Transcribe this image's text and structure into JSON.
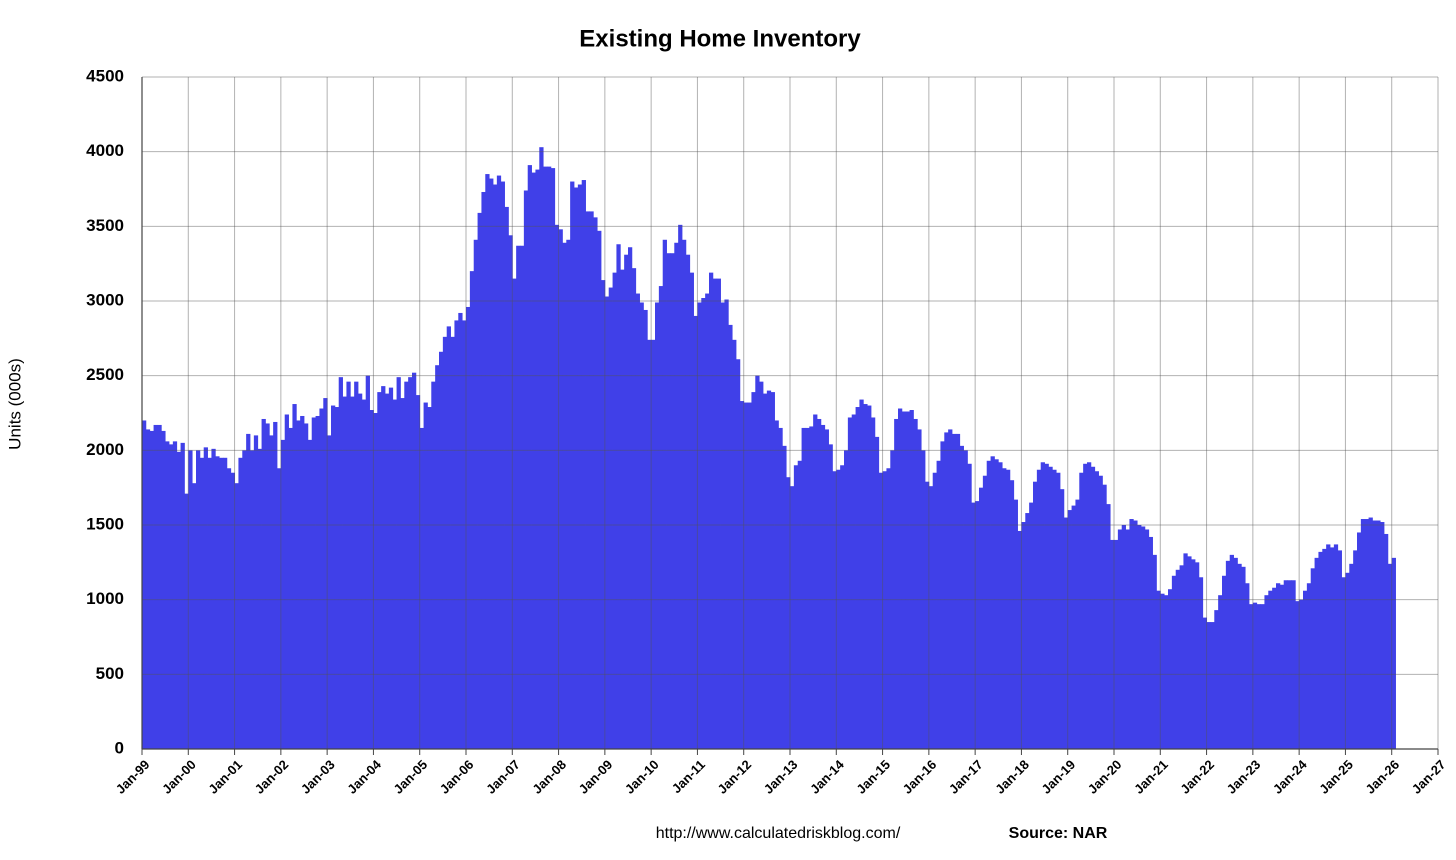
{
  "chart_data": {
    "type": "bar",
    "title": "Existing Home Inventory",
    "ylabel": "Units (000s)",
    "footer_url": "http://www.calculatedriskblog.com/",
    "source": "Source: NAR",
    "color": "#4040e8",
    "grid": true,
    "x": [
      "1999-01",
      "1999-02",
      "1999-03",
      "1999-04",
      "1999-05",
      "1999-06",
      "1999-07",
      "1999-08",
      "1999-09",
      "1999-10",
      "1999-11",
      "1999-12",
      "2000-01",
      "2000-02",
      "2000-03",
      "2000-04",
      "2000-05",
      "2000-06",
      "2000-07",
      "2000-08",
      "2000-09",
      "2000-10",
      "2000-11",
      "2000-12",
      "2001-01",
      "2001-02",
      "2001-03",
      "2001-04",
      "2001-05",
      "2001-06",
      "2001-07",
      "2001-08",
      "2001-09",
      "2001-10",
      "2001-11",
      "2001-12",
      "2002-01",
      "2002-02",
      "2002-03",
      "2002-04",
      "2002-05",
      "2002-06",
      "2002-07",
      "2002-08",
      "2002-09",
      "2002-10",
      "2002-11",
      "2002-12",
      "2003-01",
      "2003-02",
      "2003-03",
      "2003-04",
      "2003-05",
      "2003-06",
      "2003-07",
      "2003-08",
      "2003-09",
      "2003-10",
      "2003-11",
      "2003-12",
      "2004-01",
      "2004-02",
      "2004-03",
      "2004-04",
      "2004-05",
      "2004-06",
      "2004-07",
      "2004-08",
      "2004-09",
      "2004-10",
      "2004-11",
      "2004-12",
      "2005-01",
      "2005-02",
      "2005-03",
      "2005-04",
      "2005-05",
      "2005-06",
      "2005-07",
      "2005-08",
      "2005-09",
      "2005-10",
      "2005-11",
      "2005-12",
      "2006-01",
      "2006-02",
      "2006-03",
      "2006-04",
      "2006-05",
      "2006-06",
      "2006-07",
      "2006-08",
      "2006-09",
      "2006-10",
      "2006-11",
      "2006-12",
      "2007-01",
      "2007-02",
      "2007-03",
      "2007-04",
      "2007-05",
      "2007-06",
      "2007-07",
      "2007-08",
      "2007-09",
      "2007-10",
      "2007-11",
      "2007-12",
      "2008-01",
      "2008-02",
      "2008-03",
      "2008-04",
      "2008-05",
      "2008-06",
      "2008-07",
      "2008-08",
      "2008-09",
      "2008-10",
      "2008-11",
      "2008-12",
      "2009-01",
      "2009-02",
      "2009-03",
      "2009-04",
      "2009-05",
      "2009-06",
      "2009-07",
      "2009-08",
      "2009-09",
      "2009-10",
      "2009-11",
      "2009-12",
      "2010-01",
      "2010-02",
      "2010-03",
      "2010-04",
      "2010-05",
      "2010-06",
      "2010-07",
      "2010-08",
      "2010-09",
      "2010-10",
      "2010-11",
      "2010-12",
      "2011-01",
      "2011-02",
      "2011-03",
      "2011-04",
      "2011-05",
      "2011-06",
      "2011-07",
      "2011-08",
      "2011-09",
      "2011-10",
      "2011-11",
      "2011-12",
      "2012-01",
      "2012-02",
      "2012-03",
      "2012-04",
      "2012-05",
      "2012-06",
      "2012-07",
      "2012-08",
      "2012-09",
      "2012-10",
      "2012-11",
      "2012-12",
      "2013-01",
      "2013-02",
      "2013-03",
      "2013-04",
      "2013-05",
      "2013-06",
      "2013-07",
      "2013-08",
      "2013-09",
      "2013-10",
      "2013-11",
      "2013-12",
      "2014-01",
      "2014-02",
      "2014-03",
      "2014-04",
      "2014-05",
      "2014-06",
      "2014-07",
      "2014-08",
      "2014-09",
      "2014-10",
      "2014-11",
      "2014-12",
      "2015-01",
      "2015-02",
      "2015-03",
      "2015-04",
      "2015-05",
      "2015-06",
      "2015-07",
      "2015-08",
      "2015-09",
      "2015-10",
      "2015-11",
      "2015-12",
      "2016-01",
      "2016-02",
      "2016-03",
      "2016-04",
      "2016-05",
      "2016-06",
      "2016-07",
      "2016-08",
      "2016-09",
      "2016-10",
      "2016-11",
      "2016-12",
      "2017-01",
      "2017-02",
      "2017-03",
      "2017-04",
      "2017-05",
      "2017-06",
      "2017-07",
      "2017-08",
      "2017-09",
      "2017-10",
      "2017-11",
      "2017-12",
      "2018-01",
      "2018-02",
      "2018-03",
      "2018-04",
      "2018-05",
      "2018-06",
      "2018-07",
      "2018-08",
      "2018-09",
      "2018-10",
      "2018-11",
      "2018-12",
      "2019-01",
      "2019-02",
      "2019-03",
      "2019-04",
      "2019-05",
      "2019-06",
      "2019-07",
      "2019-08",
      "2019-09",
      "2019-10",
      "2019-11",
      "2019-12",
      "2020-01",
      "2020-02",
      "2020-03",
      "2020-04",
      "2020-05",
      "2020-06",
      "2020-07",
      "2020-08",
      "2020-09",
      "2020-10",
      "2020-11",
      "2020-12",
      "2021-01",
      "2021-02",
      "2021-03",
      "2021-04",
      "2021-05",
      "2021-06",
      "2021-07",
      "2021-08",
      "2021-09",
      "2021-10",
      "2021-11",
      "2021-12",
      "2022-01",
      "2022-02",
      "2022-03",
      "2022-04",
      "2022-05",
      "2022-06",
      "2022-07",
      "2022-08",
      "2022-09",
      "2022-10",
      "2022-11",
      "2022-12",
      "2023-01",
      "2023-02",
      "2023-03",
      "2023-04",
      "2023-05",
      "2023-06",
      "2023-07",
      "2023-08",
      "2023-09",
      "2023-10",
      "2023-11",
      "2023-12",
      "2024-01",
      "2024-02",
      "2024-03",
      "2024-04",
      "2024-05",
      "2024-06",
      "2024-07",
      "2024-08",
      "2024-09",
      "2024-10",
      "2024-11",
      "2024-12",
      "2025-01",
      "2025-02",
      "2025-03",
      "2025-04",
      "2025-05",
      "2025-06",
      "2025-07",
      "2025-08",
      "2025-09",
      "2025-10",
      "2025-11",
      "2025-12",
      "2026-01"
    ],
    "values": [
      2200,
      2140,
      2130,
      2170,
      2170,
      2130,
      2060,
      2040,
      2060,
      1990,
      2050,
      1710,
      2000,
      1780,
      2000,
      1950,
      2020,
      1950,
      2010,
      1960,
      1950,
      1950,
      1880,
      1850,
      1780,
      1950,
      2000,
      2110,
      2000,
      2100,
      2010,
      2210,
      2180,
      2100,
      2190,
      1880,
      2070,
      2240,
      2150,
      2310,
      2200,
      2230,
      2180,
      2070,
      2220,
      2230,
      2280,
      2350,
      2100,
      2300,
      2290,
      2490,
      2360,
      2460,
      2360,
      2460,
      2380,
      2340,
      2500,
      2270,
      2250,
      2390,
      2430,
      2380,
      2420,
      2340,
      2490,
      2350,
      2460,
      2490,
      2520,
      2370,
      2150,
      2320,
      2290,
      2460,
      2570,
      2660,
      2760,
      2830,
      2760,
      2870,
      2920,
      2870,
      2960,
      3200,
      3410,
      3590,
      3730,
      3850,
      3820,
      3780,
      3840,
      3800,
      3630,
      3440,
      3150,
      3370,
      3370,
      3740,
      3910,
      3860,
      3880,
      4030,
      3900,
      3900,
      3890,
      3510,
      3480,
      3390,
      3410,
      3800,
      3760,
      3780,
      3810,
      3600,
      3600,
      3560,
      3470,
      3140,
      3030,
      3090,
      3190,
      3380,
      3210,
      3310,
      3360,
      3220,
      3050,
      2990,
      2940,
      2740,
      2740,
      2990,
      3100,
      3410,
      3320,
      3320,
      3390,
      3510,
      3410,
      3310,
      3190,
      2900,
      2990,
      3020,
      3050,
      3190,
      3150,
      3150,
      2990,
      3010,
      2840,
      2740,
      2610,
      2330,
      2320,
      2320,
      2390,
      2500,
      2460,
      2380,
      2400,
      2390,
      2200,
      2150,
      2030,
      1820,
      1760,
      1900,
      1930,
      2150,
      2150,
      2160,
      2240,
      2210,
      2170,
      2140,
      2040,
      1860,
      1870,
      1900,
      2000,
      2220,
      2240,
      2290,
      2340,
      2310,
      2300,
      2220,
      2090,
      1850,
      1860,
      1880,
      2000,
      2210,
      2280,
      2260,
      2260,
      2270,
      2210,
      2140,
      2000,
      1790,
      1760,
      1850,
      1930,
      2060,
      2120,
      2140,
      2110,
      2110,
      2030,
      2000,
      1910,
      1650,
      1660,
      1750,
      1830,
      1930,
      1960,
      1940,
      1920,
      1880,
      1870,
      1800,
      1670,
      1460,
      1520,
      1580,
      1650,
      1790,
      1870,
      1920,
      1910,
      1890,
      1870,
      1850,
      1740,
      1550,
      1600,
      1630,
      1670,
      1850,
      1910,
      1920,
      1890,
      1860,
      1830,
      1770,
      1640,
      1400,
      1400,
      1470,
      1500,
      1470,
      1540,
      1530,
      1500,
      1490,
      1470,
      1420,
      1300,
      1060,
      1040,
      1030,
      1070,
      1160,
      1200,
      1230,
      1310,
      1290,
      1270,
      1250,
      1150,
      880,
      850,
      850,
      930,
      1030,
      1160,
      1260,
      1300,
      1280,
      1240,
      1220,
      1110,
      970,
      980,
      970,
      970,
      1030,
      1060,
      1080,
      1110,
      1100,
      1130,
      1130,
      1130,
      990,
      1000,
      1060,
      1110,
      1210,
      1280,
      1320,
      1340,
      1370,
      1350,
      1370,
      1330,
      1150,
      1180,
      1240,
      1330,
      1450,
      1540,
      1540,
      1550,
      1530,
      1530,
      1520,
      1440,
      1240,
      1280
    ],
    "xlim": [
      "1999-01",
      "2027-01"
    ],
    "xticks": [
      {
        "value": "1999-01",
        "label": "Jan-99"
      },
      {
        "value": "2000-01",
        "label": "Jan-00"
      },
      {
        "value": "2001-01",
        "label": "Jan-01"
      },
      {
        "value": "2002-01",
        "label": "Jan-02"
      },
      {
        "value": "2003-01",
        "label": "Jan-03"
      },
      {
        "value": "2004-01",
        "label": "Jan-04"
      },
      {
        "value": "2005-01",
        "label": "Jan-05"
      },
      {
        "value": "2006-01",
        "label": "Jan-06"
      },
      {
        "value": "2007-01",
        "label": "Jan-07"
      },
      {
        "value": "2008-01",
        "label": "Jan-08"
      },
      {
        "value": "2009-01",
        "label": "Jan-09"
      },
      {
        "value": "2010-01",
        "label": "Jan-10"
      },
      {
        "value": "2011-01",
        "label": "Jan-11"
      },
      {
        "value": "2012-01",
        "label": "Jan-12"
      },
      {
        "value": "2013-01",
        "label": "Jan-13"
      },
      {
        "value": "2014-01",
        "label": "Jan-14"
      },
      {
        "value": "2015-01",
        "label": "Jan-15"
      },
      {
        "value": "2016-01",
        "label": "Jan-16"
      },
      {
        "value": "2017-01",
        "label": "Jan-17"
      },
      {
        "value": "2018-01",
        "label": "Jan-18"
      },
      {
        "value": "2019-01",
        "label": "Jan-19"
      },
      {
        "value": "2020-01",
        "label": "Jan-20"
      },
      {
        "value": "2021-01",
        "label": "Jan-21"
      },
      {
        "value": "2022-01",
        "label": "Jan-22"
      },
      {
        "value": "2023-01",
        "label": "Jan-23"
      },
      {
        "value": "2024-01",
        "label": "Jan-24"
      },
      {
        "value": "2025-01",
        "label": "Jan-25"
      },
      {
        "value": "2026-01",
        "label": "Jan-26"
      },
      {
        "value": "2027-01",
        "label": "Jan-27"
      }
    ],
    "ylim": [
      0,
      4500
    ],
    "yticks": [
      0,
      500,
      1000,
      1500,
      2000,
      2500,
      3000,
      3500,
      4000,
      4500
    ]
  }
}
